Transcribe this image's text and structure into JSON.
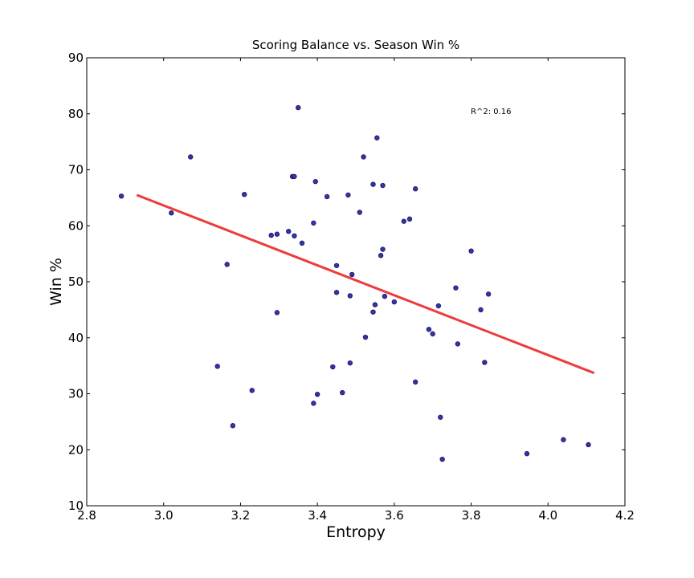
{
  "chart_data": {
    "type": "scatter",
    "title": "Scoring Balance vs. Season Win %",
    "xlabel": "Entropy",
    "ylabel": "Win %",
    "xlim": [
      2.8,
      4.2
    ],
    "ylim": [
      10,
      90
    ],
    "xticks": [
      "2.8",
      "3.0",
      "3.2",
      "3.4",
      "3.6",
      "3.8",
      "4.0",
      "4.2"
    ],
    "yticks": [
      "10",
      "20",
      "30",
      "40",
      "50",
      "60",
      "70",
      "80",
      "90"
    ],
    "annotation": "R^2: 0.16",
    "grid": false,
    "colors": {
      "points": "#3333aa",
      "point_edge": "#1a1a5e",
      "fit_line": "#ee3b3b"
    },
    "fit_line": {
      "x": [
        2.93,
        4.12
      ],
      "y": [
        65.5,
        33.7
      ]
    },
    "points": [
      [
        2.89,
        65.3
      ],
      [
        3.02,
        62.3
      ],
      [
        3.07,
        72.3
      ],
      [
        3.14,
        34.9
      ],
      [
        3.165,
        53.1
      ],
      [
        3.18,
        24.3
      ],
      [
        3.21,
        65.6
      ],
      [
        3.23,
        30.6
      ],
      [
        3.28,
        58.3
      ],
      [
        3.295,
        44.5
      ],
      [
        3.295,
        58.5
      ],
      [
        3.325,
        59.0
      ],
      [
        3.335,
        68.8
      ],
      [
        3.34,
        68.8
      ],
      [
        3.34,
        58.2
      ],
      [
        3.35,
        81.1
      ],
      [
        3.36,
        56.9
      ],
      [
        3.39,
        60.5
      ],
      [
        3.39,
        28.3
      ],
      [
        3.395,
        67.9
      ],
      [
        3.4,
        29.9
      ],
      [
        3.425,
        65.2
      ],
      [
        3.44,
        34.8
      ],
      [
        3.45,
        52.9
      ],
      [
        3.45,
        48.1
      ],
      [
        3.465,
        30.2
      ],
      [
        3.48,
        65.5
      ],
      [
        3.485,
        35.5
      ],
      [
        3.485,
        47.5
      ],
      [
        3.49,
        51.3
      ],
      [
        3.51,
        62.4
      ],
      [
        3.52,
        72.3
      ],
      [
        3.525,
        40.1
      ],
      [
        3.545,
        67.4
      ],
      [
        3.545,
        44.6
      ],
      [
        3.55,
        45.9
      ],
      [
        3.555,
        75.7
      ],
      [
        3.565,
        54.7
      ],
      [
        3.57,
        55.8
      ],
      [
        3.57,
        67.2
      ],
      [
        3.575,
        47.4
      ],
      [
        3.6,
        46.4
      ],
      [
        3.625,
        60.8
      ],
      [
        3.64,
        61.2
      ],
      [
        3.655,
        66.6
      ],
      [
        3.655,
        32.1
      ],
      [
        3.69,
        41.5
      ],
      [
        3.7,
        40.7
      ],
      [
        3.715,
        45.7
      ],
      [
        3.72,
        25.8
      ],
      [
        3.725,
        18.3
      ],
      [
        3.76,
        48.9
      ],
      [
        3.765,
        38.9
      ],
      [
        3.8,
        55.5
      ],
      [
        3.825,
        45.0
      ],
      [
        3.835,
        35.6
      ],
      [
        3.845,
        47.8
      ],
      [
        3.945,
        19.3
      ],
      [
        4.04,
        21.8
      ],
      [
        4.105,
        20.9
      ]
    ]
  }
}
